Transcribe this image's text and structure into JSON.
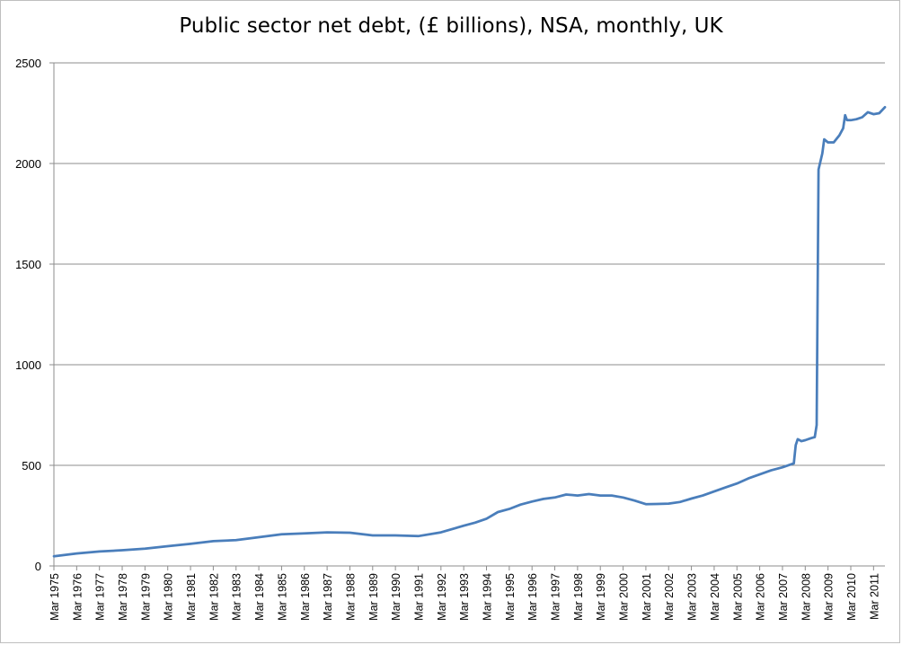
{
  "chart_data": {
    "type": "line",
    "title": "Public sector net debt, (£ billions), NSA, monthly, UK",
    "xlabel": "",
    "ylabel": "",
    "ylim": [
      0,
      2500
    ],
    "yticks": [
      "0",
      "500",
      "1000",
      "1500",
      "2000",
      "2500"
    ],
    "xlim": [
      "1975-03",
      "2011-09"
    ],
    "x_tick_labels": [
      "Mar 1975",
      "Mar 1976",
      "Mar 1977",
      "Mar 1978",
      "Mar 1979",
      "Mar 1980",
      "Mar 1981",
      "Mar 1982",
      "Mar 1983",
      "Mar 1984",
      "Mar 1985",
      "Mar 1986",
      "Mar 1987",
      "Mar 1988",
      "Mar 1989",
      "Mar 1990",
      "Mar 1991",
      "Mar 1992",
      "Mar 1993",
      "Mar 1994",
      "Mar 1995",
      "Mar 1996",
      "Mar 1997",
      "Mar 1998",
      "Mar 1999",
      "Mar 2000",
      "Mar 2001",
      "Mar 2002",
      "Mar 2003",
      "Mar 2004",
      "Mar 2005",
      "Mar 2006",
      "Mar 2007",
      "Mar 2008",
      "Mar 2009",
      "Mar 2010",
      "Mar 2011"
    ],
    "grid": true,
    "line_color": "#4a7ebb",
    "series": [
      {
        "values": [
          [
            "1975-03",
            48
          ],
          [
            "1976-03",
            62
          ],
          [
            "1977-03",
            72
          ],
          [
            "1978-03",
            78
          ],
          [
            "1979-03",
            86
          ],
          [
            "1980-03",
            98
          ],
          [
            "1981-03",
            110
          ],
          [
            "1982-03",
            123
          ],
          [
            "1983-03",
            128
          ],
          [
            "1984-03",
            143
          ],
          [
            "1985-03",
            157
          ],
          [
            "1986-03",
            162
          ],
          [
            "1987-03",
            167
          ],
          [
            "1988-03",
            165
          ],
          [
            "1989-03",
            152
          ],
          [
            "1990-03",
            152
          ],
          [
            "1991-03",
            148
          ],
          [
            "1992-03",
            167
          ],
          [
            "1993-03",
            200
          ],
          [
            "1993-09",
            215
          ],
          [
            "1994-03",
            235
          ],
          [
            "1994-09",
            268
          ],
          [
            "1995-03",
            283
          ],
          [
            "1995-09",
            305
          ],
          [
            "1996-03",
            320
          ],
          [
            "1996-09",
            333
          ],
          [
            "1997-03",
            340
          ],
          [
            "1997-09",
            355
          ],
          [
            "1998-03",
            350
          ],
          [
            "1998-09",
            357
          ],
          [
            "1999-03",
            350
          ],
          [
            "1999-09",
            350
          ],
          [
            "2000-03",
            340
          ],
          [
            "2000-09",
            325
          ],
          [
            "2001-03",
            307
          ],
          [
            "2001-09",
            308
          ],
          [
            "2002-03",
            310
          ],
          [
            "2002-09",
            318
          ],
          [
            "2003-03",
            335
          ],
          [
            "2003-09",
            350
          ],
          [
            "2004-03",
            370
          ],
          [
            "2004-09",
            390
          ],
          [
            "2005-03",
            410
          ],
          [
            "2005-09",
            435
          ],
          [
            "2006-03",
            455
          ],
          [
            "2006-09",
            475
          ],
          [
            "2007-03",
            490
          ],
          [
            "2007-09",
            510
          ],
          [
            "2007-10",
            600
          ],
          [
            "2007-11",
            630
          ],
          [
            "2008-01",
            620
          ],
          [
            "2008-03",
            625
          ],
          [
            "2008-06",
            635
          ],
          [
            "2008-08",
            640
          ],
          [
            "2008-09",
            700
          ],
          [
            "2008-10",
            1970
          ],
          [
            "2008-12",
            2050
          ],
          [
            "2009-01",
            2120
          ],
          [
            "2009-03",
            2105
          ],
          [
            "2009-06",
            2105
          ],
          [
            "2009-09",
            2140
          ],
          [
            "2009-11",
            2175
          ],
          [
            "2009-12",
            2240
          ],
          [
            "2010-01",
            2215
          ],
          [
            "2010-03",
            2215
          ],
          [
            "2010-06",
            2220
          ],
          [
            "2010-09",
            2230
          ],
          [
            "2010-12",
            2255
          ],
          [
            "2011-03",
            2245
          ],
          [
            "2011-06",
            2250
          ],
          [
            "2011-09",
            2280
          ]
        ]
      }
    ]
  }
}
